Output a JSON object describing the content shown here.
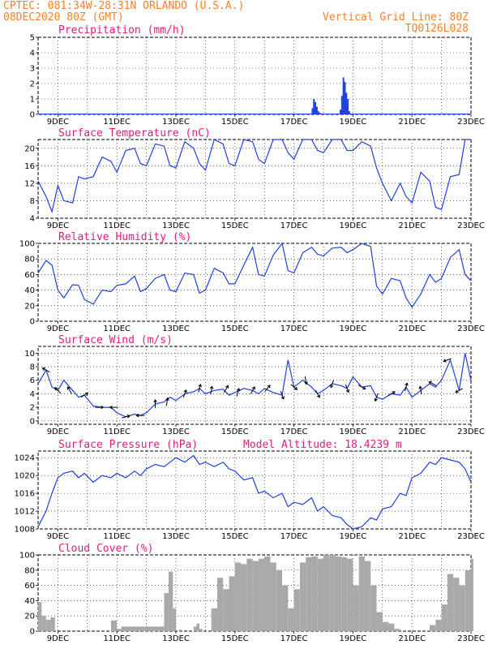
{
  "header": {
    "line1_left": "CPTEC:   081:34W-28:31N   ORLANDO (U.S.A.)",
    "line2_left": "08DEC2020 80Z (GMT)",
    "line1_right": "Vertical Grid Line: 80Z",
    "line2_right": "TQ0126L028"
  },
  "x_tick_labels": [
    "9DEC",
    "11DEC",
    "13DEC",
    "15DEC",
    "17DEC",
    "19DEC",
    "21DEC",
    "23DEC"
  ],
  "colors": {
    "header": "#ff7f27",
    "title": "#e6197c",
    "line": "#1f3fe0",
    "bars_precip": "#1f3fe0",
    "bars_cloud": "#a9a9a9",
    "arrow": "#000000"
  },
  "chart_data": [
    {
      "type": "bar",
      "title": "Precipitation (mm/h)",
      "ylim": [
        0,
        5
      ],
      "yticks": [
        0,
        1,
        2,
        3,
        4,
        5
      ],
      "xlim_days": [
        8.33,
        23.0
      ],
      "x": [
        17.6,
        17.65,
        17.7,
        17.75,
        17.8,
        17.85,
        18.55,
        18.6,
        18.65,
        18.7,
        18.75,
        18.8,
        18.85
      ],
      "values": [
        0.4,
        1.0,
        0.8,
        0.5,
        0.2,
        0.1,
        0.3,
        1.2,
        2.4,
        2.1,
        1.4,
        1.0,
        0.2
      ]
    },
    {
      "type": "line",
      "title": "Surface Temperature (nC)",
      "ylim": [
        4,
        22
      ],
      "yticks": [
        4,
        8,
        12,
        16,
        20
      ],
      "xlim_days": [
        8.33,
        23.0
      ],
      "x": [
        8.33,
        8.6,
        8.8,
        9.0,
        9.2,
        9.5,
        9.7,
        9.9,
        10.2,
        10.5,
        10.8,
        11.0,
        11.3,
        11.6,
        11.8,
        12.0,
        12.3,
        12.6,
        12.8,
        13.0,
        13.3,
        13.6,
        13.8,
        14.0,
        14.3,
        14.6,
        14.8,
        15.0,
        15.3,
        15.6,
        15.8,
        16.0,
        16.3,
        16.6,
        16.8,
        17.0,
        17.3,
        17.6,
        17.8,
        18.0,
        18.3,
        18.6,
        18.8,
        19.0,
        19.3,
        19.6,
        19.8,
        20.0,
        20.3,
        20.6,
        20.8,
        21.0,
        21.3,
        21.6,
        21.8,
        22.0,
        22.3,
        22.6,
        22.8,
        23.0
      ],
      "values": [
        12.5,
        9.0,
        5.5,
        11.5,
        8.0,
        7.5,
        13.5,
        13.0,
        13.5,
        18.0,
        17.0,
        14.5,
        19.5,
        20.0,
        16.5,
        16.0,
        21.0,
        20.5,
        16.0,
        15.5,
        21.5,
        20.0,
        16.5,
        15.0,
        22.0,
        21.0,
        16.5,
        16.0,
        22.5,
        21.5,
        17.5,
        16.5,
        22.5,
        23.0,
        19.0,
        17.5,
        23.0,
        23.5,
        19.5,
        19.0,
        22.5,
        23.0,
        19.5,
        19.5,
        21.5,
        20.5,
        15.5,
        12.0,
        8.0,
        12.0,
        9.0,
        7.5,
        14.5,
        12.5,
        6.5,
        6.0,
        13.5,
        14.0,
        22.5,
        22.0
      ]
    },
    {
      "type": "line",
      "title": "Relative Humidity (%)",
      "ylim": [
        0,
        100
      ],
      "yticks": [
        0,
        20,
        40,
        60,
        80,
        100
      ],
      "xlim_days": [
        8.33,
        23.0
      ],
      "x": [
        8.33,
        8.6,
        8.8,
        9.0,
        9.2,
        9.5,
        9.7,
        9.9,
        10.2,
        10.5,
        10.8,
        11.0,
        11.3,
        11.6,
        11.8,
        12.0,
        12.3,
        12.6,
        12.8,
        13.0,
        13.3,
        13.6,
        13.8,
        14.0,
        14.3,
        14.6,
        14.8,
        15.0,
        15.3,
        15.6,
        15.8,
        16.0,
        16.3,
        16.6,
        16.8,
        17.0,
        17.3,
        17.6,
        17.8,
        18.0,
        18.3,
        18.6,
        18.8,
        19.0,
        19.3,
        19.6,
        19.8,
        20.0,
        20.3,
        20.6,
        20.8,
        21.0,
        21.3,
        21.6,
        21.8,
        22.0,
        22.3,
        22.6,
        22.8,
        23.0
      ],
      "values": [
        62,
        78,
        72,
        40,
        30,
        47,
        46,
        28,
        22,
        40,
        38,
        46,
        48,
        58,
        38,
        42,
        55,
        60,
        40,
        38,
        62,
        60,
        36,
        40,
        68,
        62,
        48,
        48,
        72,
        95,
        60,
        58,
        85,
        100,
        65,
        62,
        88,
        95,
        86,
        84,
        94,
        95,
        88,
        92,
        100,
        96,
        45,
        35,
        55,
        52,
        30,
        18,
        35,
        60,
        50,
        55,
        82,
        92,
        60,
        52
      ]
    },
    {
      "type": "line",
      "title": "Surface Wind (m/s)",
      "ylim": [
        -0.5,
        11
      ],
      "yticks": [
        0,
        2,
        4,
        6,
        8,
        10
      ],
      "xlim_days": [
        8.33,
        23.0
      ],
      "x": [
        8.33,
        8.6,
        8.8,
        9.0,
        9.2,
        9.5,
        9.7,
        9.9,
        10.2,
        10.5,
        10.8,
        11.0,
        11.3,
        11.6,
        11.8,
        12.0,
        12.3,
        12.6,
        12.8,
        13.0,
        13.3,
        13.6,
        13.8,
        14.0,
        14.3,
        14.6,
        14.8,
        15.0,
        15.3,
        15.6,
        15.8,
        16.0,
        16.3,
        16.6,
        16.8,
        17.0,
        17.3,
        17.6,
        17.8,
        18.0,
        18.3,
        18.6,
        18.8,
        19.0,
        19.3,
        19.6,
        19.8,
        20.0,
        20.3,
        20.6,
        20.8,
        21.0,
        21.3,
        21.6,
        21.8,
        22.0,
        22.3,
        22.6,
        22.8,
        23.0
      ],
      "values": [
        5.5,
        7.5,
        5.0,
        4.5,
        6.0,
        4.5,
        3.5,
        3.8,
        2.2,
        2.0,
        2.0,
        1.2,
        0.6,
        1.0,
        0.8,
        1.2,
        2.5,
        2.8,
        3.5,
        3.0,
        4.0,
        4.3,
        4.8,
        4.0,
        4.5,
        4.7,
        3.8,
        4.2,
        4.8,
        4.5,
        4.0,
        4.8,
        4.2,
        3.8,
        9.0,
        5.0,
        6.0,
        5.0,
        4.0,
        4.5,
        5.5,
        5.2,
        4.8,
        6.5,
        5.0,
        5.2,
        3.5,
        3.2,
        4.0,
        3.8,
        5.0,
        3.5,
        4.5,
        5.5,
        5.0,
        6.0,
        9.0,
        4.5,
        10.0,
        6.0
      ],
      "arrows_x": [
        8.6,
        9.0,
        9.4,
        9.9,
        10.4,
        10.9,
        11.3,
        11.8,
        12.3,
        12.7,
        13.3,
        13.8,
        14.2,
        14.7,
        15.1,
        15.6,
        16.1,
        16.6,
        17.0,
        17.4,
        17.8,
        18.3,
        18.8,
        19.3,
        19.8,
        20.3,
        20.8,
        21.3,
        21.7,
        22.2,
        22.6
      ],
      "arrows_dir_deg": [
        300,
        315,
        330,
        60,
        90,
        270,
        75,
        270,
        0,
        10,
        20,
        15,
        10,
        30,
        15,
        30,
        40,
        160,
        130,
        170,
        150,
        200,
        160,
        120,
        200,
        60,
        15,
        350,
        300,
        250,
        240
      ]
    },
    {
      "type": "line",
      "title": "Surface Pressure (hPa)",
      "subtitle": "Model Altitude: 18.4239 m",
      "ylim": [
        1008,
        1025.5
      ],
      "yticks": [
        1008,
        1012,
        1016,
        1020,
        1024
      ],
      "xlim_days": [
        8.33,
        23.0
      ],
      "x": [
        8.33,
        8.6,
        8.8,
        9.0,
        9.2,
        9.5,
        9.7,
        9.9,
        10.2,
        10.5,
        10.8,
        11.0,
        11.3,
        11.6,
        11.8,
        12.0,
        12.3,
        12.6,
        12.8,
        13.0,
        13.3,
        13.6,
        13.8,
        14.0,
        14.3,
        14.6,
        14.8,
        15.0,
        15.3,
        15.6,
        15.8,
        16.0,
        16.3,
        16.6,
        16.8,
        17.0,
        17.3,
        17.6,
        17.8,
        18.0,
        18.3,
        18.6,
        18.8,
        19.0,
        19.3,
        19.6,
        19.8,
        20.0,
        20.3,
        20.6,
        20.8,
        21.0,
        21.3,
        21.6,
        21.8,
        22.0,
        22.3,
        22.6,
        22.8,
        23.0
      ],
      "values": [
        1008.5,
        1012.0,
        1016.0,
        1019.5,
        1020.5,
        1021.0,
        1019.5,
        1020.5,
        1018.5,
        1020.0,
        1019.5,
        1020.5,
        1019.5,
        1021.0,
        1020.0,
        1021.5,
        1022.5,
        1022.0,
        1023.0,
        1024.0,
        1023.0,
        1024.5,
        1022.5,
        1023.0,
        1022.0,
        1023.0,
        1021.5,
        1021.0,
        1019.0,
        1019.5,
        1016.0,
        1016.5,
        1015.0,
        1016.0,
        1013.0,
        1014.0,
        1013.5,
        1015.0,
        1012.0,
        1013.0,
        1011.0,
        1010.5,
        1009.0,
        1008.0,
        1008.5,
        1010.5,
        1010.0,
        1012.5,
        1013.0,
        1016.0,
        1015.5,
        1019.5,
        1020.5,
        1023.0,
        1022.5,
        1024.0,
        1023.5,
        1023.0,
        1021.5,
        1018.5
      ]
    },
    {
      "type": "bar",
      "title": "Cloud Cover (%)",
      "ylim": [
        0,
        100
      ],
      "yticks": [
        0,
        20,
        40,
        60,
        80,
        100
      ],
      "xlim_days": [
        8.33,
        23.0
      ],
      "x": [
        8.33,
        8.45,
        8.6,
        8.75,
        8.9,
        10.8,
        11.0,
        11.15,
        12.6,
        12.75,
        12.9,
        13.0,
        13.1,
        13.2,
        13.3,
        13.6,
        13.7,
        13.8,
        13.9,
        14.0,
        14.2,
        14.4,
        14.6,
        14.8,
        15.0,
        15.2,
        15.4,
        15.6,
        15.8,
        16.0,
        16.2,
        16.4,
        16.6,
        16.8,
        17.0,
        17.2,
        17.4,
        17.6,
        17.8,
        18.0,
        18.2,
        18.4,
        18.6,
        18.8,
        19.0,
        19.2,
        19.4,
        19.6,
        19.8,
        20.0,
        20.2,
        20.4,
        20.6,
        21.6,
        21.8,
        22.0,
        22.2,
        22.4,
        22.6,
        22.8,
        23.0
      ],
      "values": [
        38,
        20,
        15,
        18,
        0,
        14,
        3,
        6,
        50,
        78,
        30,
        0,
        2,
        0,
        0,
        6,
        10,
        3,
        0,
        0,
        30,
        70,
        55,
        72,
        90,
        88,
        95,
        92,
        95,
        98,
        90,
        80,
        60,
        30,
        55,
        90,
        97,
        98,
        95,
        100,
        100,
        98,
        97,
        95,
        60,
        98,
        92,
        60,
        25,
        12,
        10,
        3,
        0,
        8,
        15,
        35,
        75,
        70,
        60,
        80,
        95
      ]
    }
  ]
}
